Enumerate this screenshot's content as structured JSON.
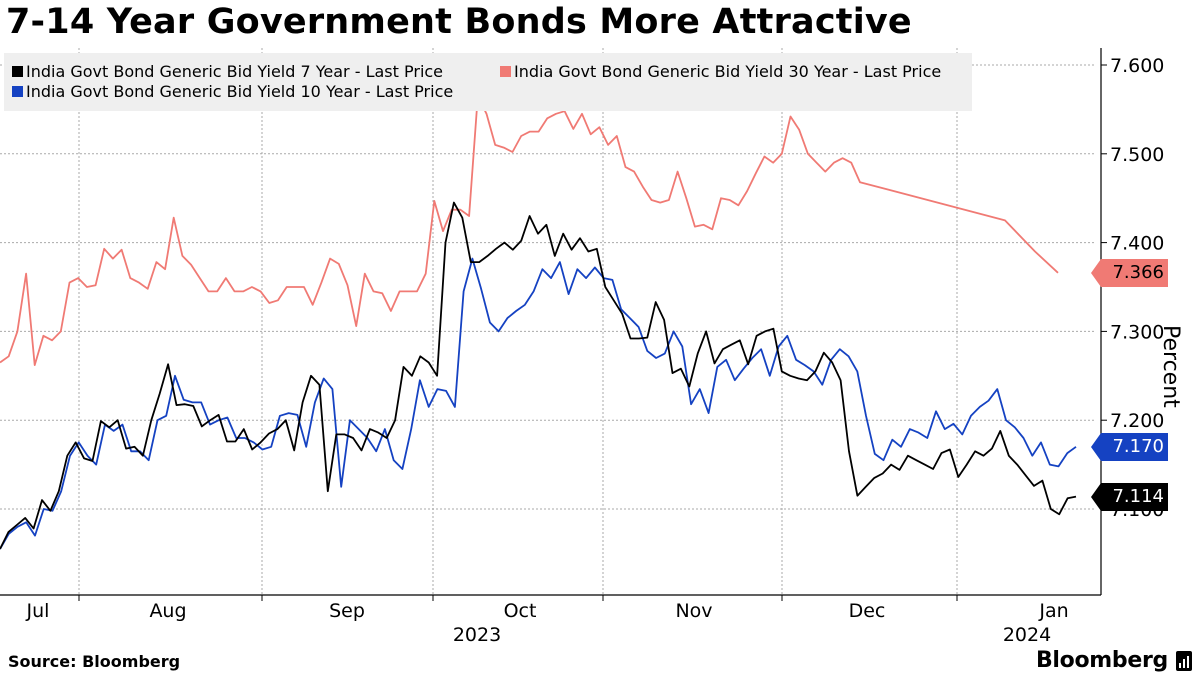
{
  "title": "7-14 Year Government Bonds More Attractive",
  "source": "Source: Bloomberg",
  "brand": "Bloomberg",
  "chart_data": {
    "type": "line",
    "ylabel": "Percent",
    "ylim": [
      7.0,
      7.63
    ],
    "yticks": [
      "7.100",
      "7.200",
      "7.300",
      "7.400",
      "7.500",
      "7.600"
    ],
    "x_month_labels": [
      "Jul",
      "Aug",
      "Sep",
      "Oct",
      "Nov",
      "Dec",
      "Jan"
    ],
    "x_year_labels": [
      "2023",
      "2024"
    ],
    "series": [
      {
        "name": "India Govt Bond Generic Bid Yield 7 Year - Last Price",
        "color": "#000000",
        "last_value": "7.114",
        "values": [
          7.055,
          7.074,
          7.082,
          7.09,
          7.078,
          7.11,
          7.098,
          7.12,
          7.16,
          7.175,
          7.157,
          7.154,
          7.199,
          7.192,
          7.2,
          7.168,
          7.17,
          7.16,
          7.2,
          7.23,
          7.263,
          7.217,
          7.218,
          7.216,
          7.193,
          7.2,
          7.206,
          7.176,
          7.176,
          7.19,
          7.167,
          7.175,
          7.185,
          7.19,
          7.2,
          7.166,
          7.22,
          7.25,
          7.24,
          7.12,
          7.184,
          7.184,
          7.18,
          7.166,
          7.19,
          7.186,
          7.18,
          7.2,
          7.26,
          7.25,
          7.272,
          7.265,
          7.25,
          7.4,
          7.445,
          7.428,
          7.378,
          7.378,
          7.385,
          7.393,
          7.4,
          7.392,
          7.402,
          7.43,
          7.41,
          7.42,
          7.385,
          7.41,
          7.392,
          7.405,
          7.39,
          7.393,
          7.35,
          7.335,
          7.32,
          7.292,
          7.292,
          7.293,
          7.333,
          7.313,
          7.253,
          7.258,
          7.238,
          7.275,
          7.3,
          7.264,
          7.28,
          7.285,
          7.29,
          7.263,
          7.295,
          7.3,
          7.303,
          7.255,
          7.25,
          7.247,
          7.245,
          7.255,
          7.276,
          7.265,
          7.245,
          7.165,
          7.115,
          7.125,
          7.135,
          7.14,
          7.15,
          7.144,
          7.16,
          7.155,
          7.15,
          7.145,
          7.163,
          7.167,
          7.136,
          7.15,
          7.165,
          7.16,
          7.168,
          7.188,
          7.16,
          7.15,
          7.138,
          7.126,
          7.132,
          7.1,
          7.094,
          7.112,
          7.114
        ]
      },
      {
        "name": "India Govt Bond Generic Bid Yield 30 Year - Last Price",
        "color": "#f07a74",
        "last_value": "7.366",
        "values": [
          7.265,
          7.272,
          7.3,
          7.365,
          7.262,
          7.295,
          7.29,
          7.3,
          7.355,
          7.36,
          7.35,
          7.352,
          7.393,
          7.382,
          7.392,
          7.36,
          7.355,
          7.348,
          7.378,
          7.37,
          7.428,
          7.385,
          7.375,
          7.36,
          7.345,
          7.345,
          7.36,
          7.345,
          7.345,
          7.35,
          7.345,
          7.332,
          7.335,
          7.35,
          7.35,
          7.35,
          7.33,
          7.355,
          7.382,
          7.376,
          7.352,
          7.306,
          7.365,
          7.345,
          7.343,
          7.323,
          7.345,
          7.345,
          7.345,
          7.365,
          7.447,
          7.413,
          7.437,
          7.437,
          7.43,
          7.565,
          7.545,
          7.51,
          7.507,
          7.502,
          7.52,
          7.525,
          7.525,
          7.54,
          7.545,
          7.548,
          7.528,
          7.545,
          7.522,
          7.53,
          7.51,
          7.52,
          7.485,
          7.48,
          7.463,
          7.448,
          7.445,
          7.448,
          7.48,
          7.45,
          7.418,
          7.42,
          7.415,
          7.45,
          7.448,
          7.442,
          7.458,
          7.478,
          7.497,
          7.49,
          7.5,
          7.542,
          7.527,
          7.5,
          7.49,
          7.48,
          7.49,
          7.495,
          7.49,
          7.468,
          7.425,
          7.39,
          7.365
        ]
      },
      {
        "name": "India Govt Bond Generic Bid Yield 10 Year - Last Price",
        "color": "#1542c2",
        "last_value": "7.170",
        "values": [
          7.055,
          7.072,
          7.08,
          7.085,
          7.07,
          7.1,
          7.098,
          7.12,
          7.16,
          7.175,
          7.16,
          7.15,
          7.195,
          7.188,
          7.195,
          7.165,
          7.165,
          7.155,
          7.2,
          7.205,
          7.25,
          7.223,
          7.22,
          7.22,
          7.195,
          7.2,
          7.203,
          7.18,
          7.18,
          7.175,
          7.167,
          7.17,
          7.205,
          7.208,
          7.206,
          7.17,
          7.22,
          7.247,
          7.235,
          7.125,
          7.2,
          7.19,
          7.18,
          7.165,
          7.19,
          7.155,
          7.145,
          7.19,
          7.245,
          7.215,
          7.235,
          7.233,
          7.215,
          7.345,
          7.382,
          7.348,
          7.31,
          7.3,
          7.315,
          7.323,
          7.33,
          7.345,
          7.37,
          7.36,
          7.378,
          7.342,
          7.37,
          7.36,
          7.372,
          7.36,
          7.358,
          7.325,
          7.315,
          7.305,
          7.278,
          7.27,
          7.275,
          7.3,
          7.283,
          7.218,
          7.235,
          7.208,
          7.26,
          7.268,
          7.245,
          7.258,
          7.27,
          7.28,
          7.25,
          7.283,
          7.295,
          7.268,
          7.262,
          7.255,
          7.24,
          7.268,
          7.28,
          7.272,
          7.255,
          7.205,
          7.162,
          7.155,
          7.178,
          7.17,
          7.19,
          7.186,
          7.18,
          7.21,
          7.19,
          7.196,
          7.184,
          7.205,
          7.215,
          7.222,
          7.235,
          7.2,
          7.192,
          7.18,
          7.16,
          7.175,
          7.15,
          7.148,
          7.163,
          7.17
        ]
      }
    ]
  }
}
